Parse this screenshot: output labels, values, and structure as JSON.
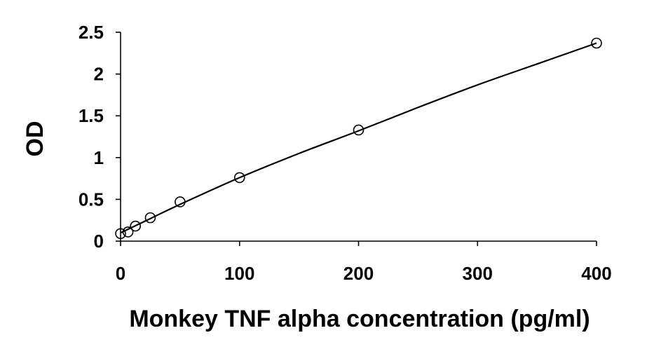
{
  "chart_data": {
    "type": "scatter",
    "title": "",
    "xlabel": "Monkey TNF alpha concentration (pg/ml)",
    "ylabel": "OD",
    "xlim": [
      0,
      400
    ],
    "ylim": [
      0,
      2.5
    ],
    "x_ticks": [
      0,
      100,
      200,
      300,
      400
    ],
    "x_tick_labels": [
      "0",
      "100",
      "200",
      "300",
      "400"
    ],
    "y_ticks": [
      0,
      0.5,
      1,
      1.5,
      2,
      2.5
    ],
    "y_tick_labels": [
      "0",
      "0.5",
      "1",
      "1.5",
      "2",
      "2.5"
    ],
    "grid": false,
    "legend": "none",
    "marker": "open-circle",
    "series": [
      {
        "points": [
          {
            "x": 0,
            "y": 0.09
          },
          {
            "x": 6.25,
            "y": 0.11
          },
          {
            "x": 12.5,
            "y": 0.18
          },
          {
            "x": 25,
            "y": 0.28
          },
          {
            "x": 50,
            "y": 0.47
          },
          {
            "x": 100,
            "y": 0.76
          },
          {
            "x": 200,
            "y": 1.33
          },
          {
            "x": 400,
            "y": 2.37
          }
        ]
      }
    ],
    "fit_curve": {
      "type": "line",
      "points": [
        {
          "x": 0,
          "y": 0.1
        },
        {
          "x": 25,
          "y": 0.27
        },
        {
          "x": 50,
          "y": 0.44
        },
        {
          "x": 100,
          "y": 0.76
        },
        {
          "x": 150,
          "y": 1.05
        },
        {
          "x": 200,
          "y": 1.32
        },
        {
          "x": 250,
          "y": 1.6
        },
        {
          "x": 300,
          "y": 1.87
        },
        {
          "x": 350,
          "y": 2.12
        },
        {
          "x": 400,
          "y": 2.37
        }
      ]
    },
    "colors": {
      "marker_stroke": "#000000",
      "marker_fill": "#ffffff",
      "line": "#000000",
      "axis": "#000000"
    }
  }
}
